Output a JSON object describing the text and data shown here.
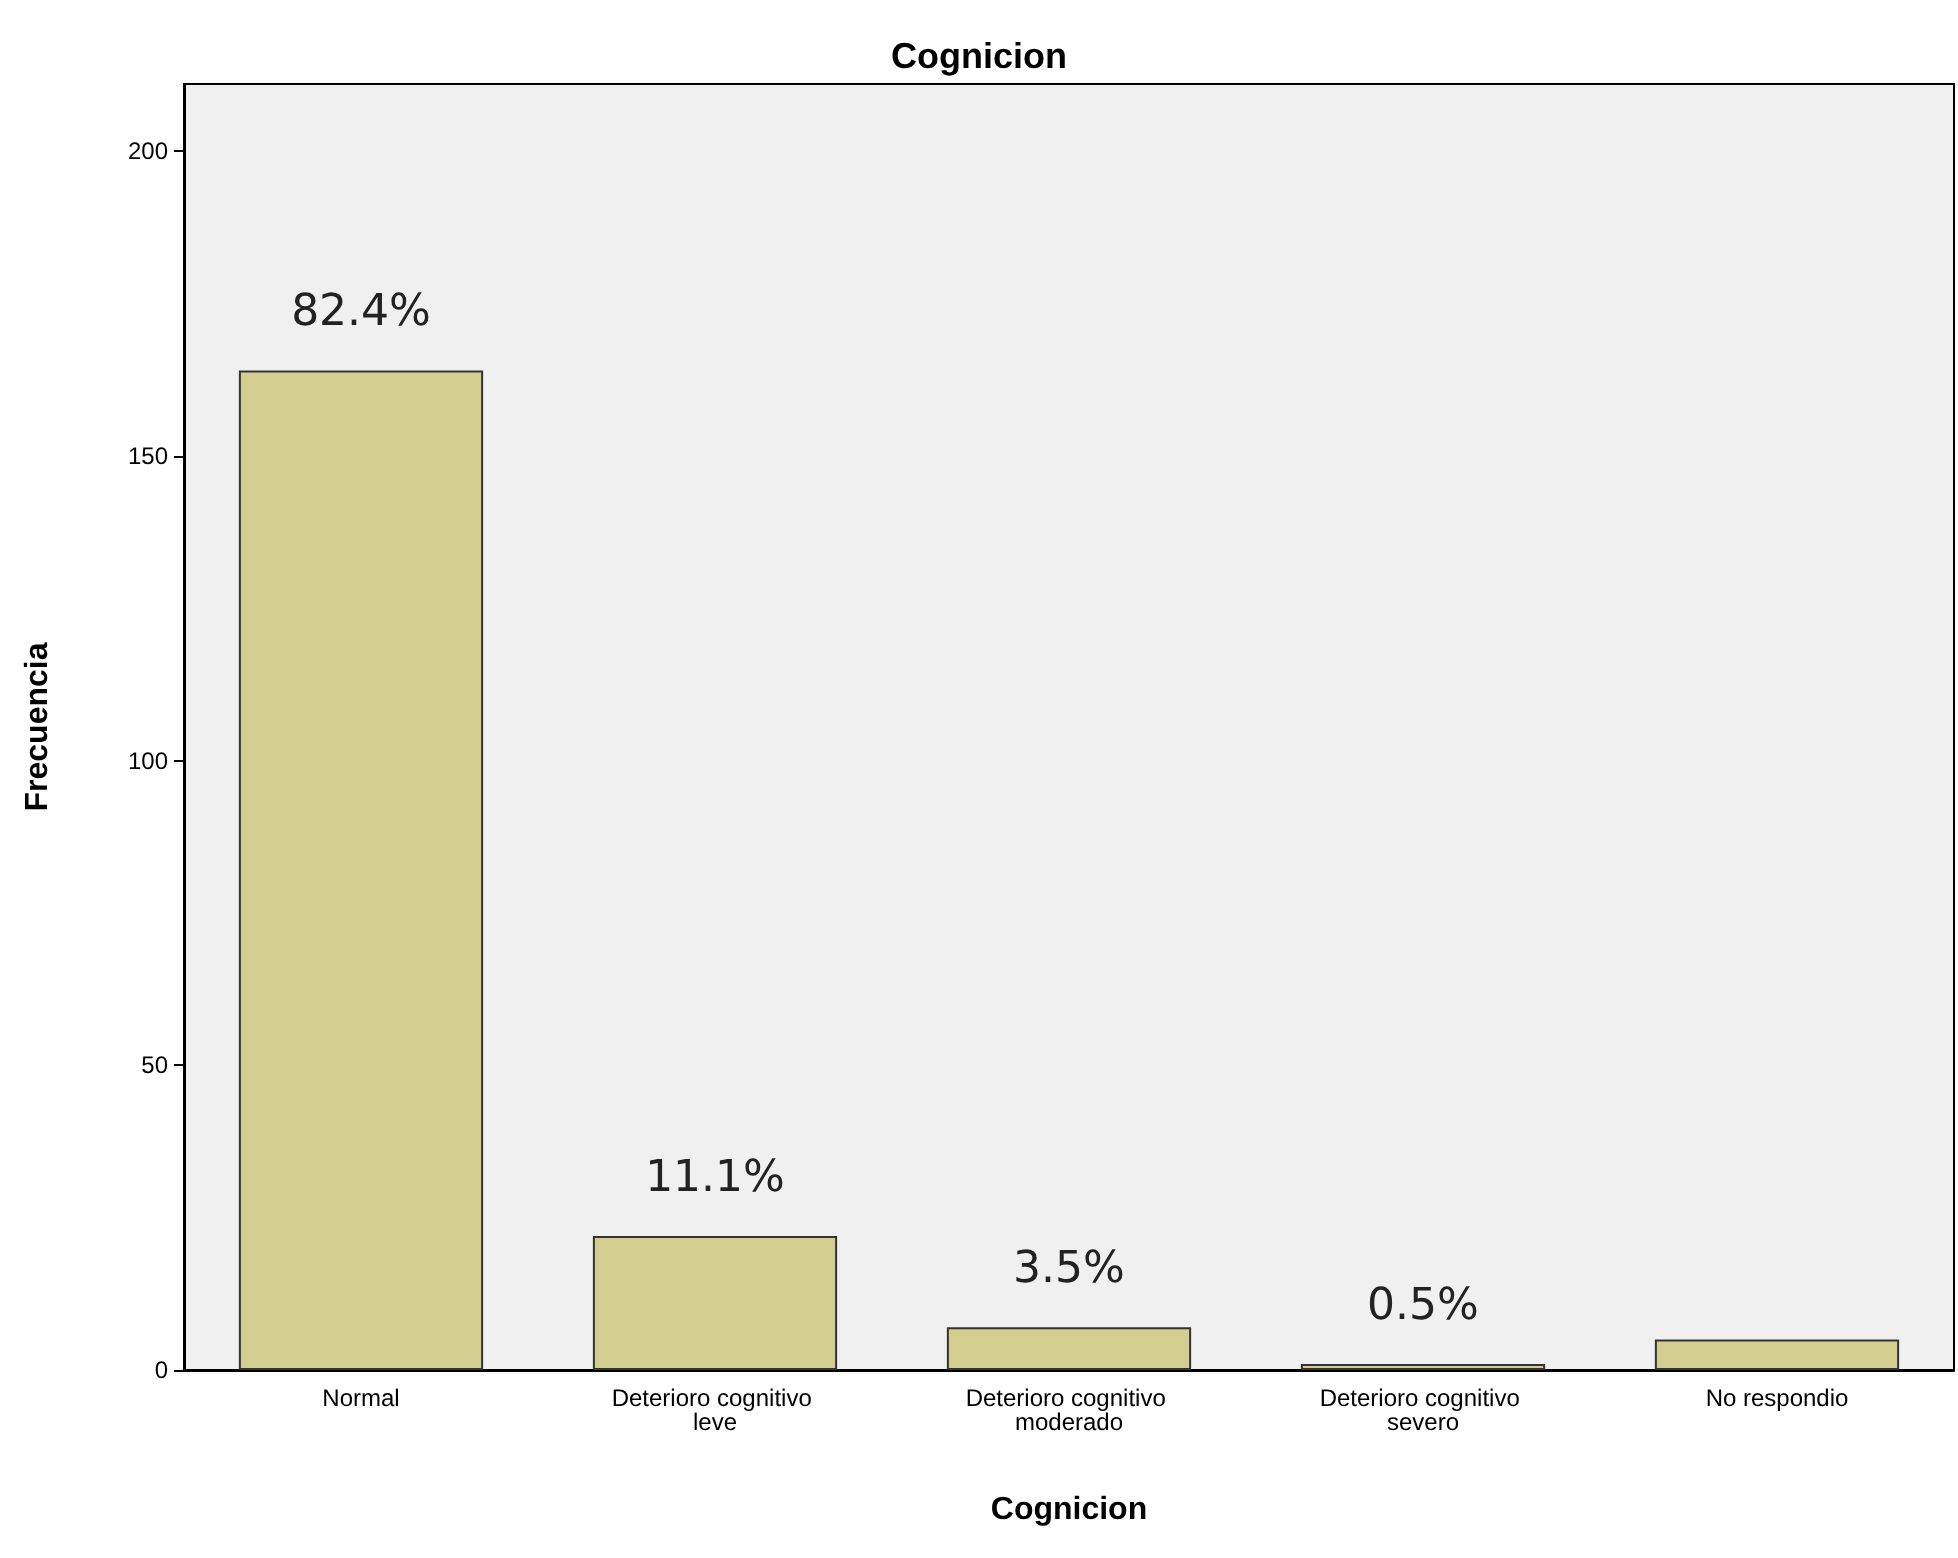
{
  "chart_data": {
    "type": "bar",
    "title": "Cognicion",
    "xlabel": "Cognicion",
    "ylabel": "Frecuencia",
    "categories": [
      "Normal",
      "Deterioro cognitivo leve",
      "Deterioro cognitivo moderado",
      "Deterioro cognitivo severo",
      "No respondio"
    ],
    "values": [
      164,
      22,
      7,
      1,
      5
    ],
    "annotations": [
      {
        "text": "82.4%",
        "x": "Normal",
        "y": 164
      },
      {
        "text": "11.1%",
        "x": "Deterioro cognitivo leve",
        "y": 22
      },
      {
        "text": "3.5%",
        "x": "Deterioro cognitivo moderado",
        "y": 7
      },
      {
        "text": "0.5%",
        "x": "Deterioro cognitivo severo",
        "y": 1
      }
    ],
    "color": "#d3ce8f",
    "ylim": [
      0,
      211
    ],
    "yticks": [
      0,
      50,
      100,
      150,
      200
    ],
    "grid": false
  }
}
